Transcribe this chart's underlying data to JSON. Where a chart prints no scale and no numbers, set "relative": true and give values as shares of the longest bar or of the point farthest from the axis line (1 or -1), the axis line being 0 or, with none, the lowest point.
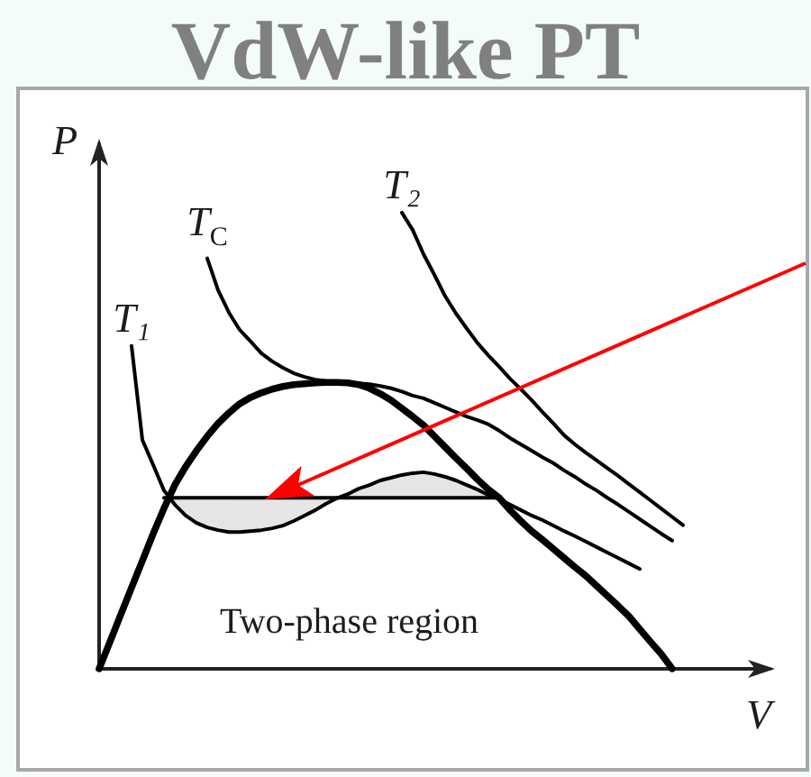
{
  "chart_data": {
    "type": "line",
    "title": "VdW-like PT",
    "xlabel": "V",
    "ylabel": "P",
    "relative": true,
    "annotations": [
      "Two-phase region"
    ],
    "categories": [
      null,
      null,
      null,
      null,
      null,
      null,
      null,
      null,
      null,
      null,
      null,
      null,
      null,
      null,
      null,
      null,
      null,
      null,
      null,
      null,
      null,
      null,
      null,
      null,
      null,
      null,
      null,
      null,
      null,
      null,
      null,
      null,
      null,
      null,
      null,
      null,
      null,
      null,
      null,
      null,
      null,
      null,
      null,
      null,
      null,
      null,
      null,
      null,
      null,
      null,
      null,
      null,
      null,
      null,
      null,
      null,
      null,
      null,
      null,
      null,
      null,
      null,
      null
    ],
    "series": [
      {
        "color": "#000000",
        "values": [
          0,
          0.059,
          0.119,
          0.178,
          0.237,
          0.296,
          0.352,
          0.403,
          0.443,
          0.478,
          0.51,
          0.538,
          0.561,
          0.581,
          0.595,
          0.605,
          0.613,
          0.619,
          0.623,
          0.625,
          0.627,
          0.628,
          0.628,
          0.627,
          0.623,
          0.615,
          0.603,
          0.589,
          0.571,
          0.553,
          0.534,
          0.51,
          0.486,
          0.462,
          0.439,
          0.415,
          0.393,
          0.375,
          0.348,
          0.324,
          0.302,
          0.283,
          0.263,
          0.243,
          0.223,
          0.204,
          0.182,
          0.16,
          0.138,
          0.115,
          0.087,
          0.059,
          0.032,
          0,
          null,
          null,
          null,
          null,
          null,
          null,
          null,
          null,
          null
        ]
      },
      {
        "name": "T₁",
        "color": "#000000",
        "values": [
          null,
          null,
          null,
          0.708,
          0.502,
          0.447,
          0.391,
          0.36,
          0.336,
          0.32,
          0.31,
          0.304,
          0.3,
          0.3,
          0.302,
          0.304,
          0.308,
          0.314,
          0.324,
          0.336,
          0.348,
          0.362,
          0.374,
          0.383,
          0.395,
          0.403,
          0.413,
          0.419,
          0.425,
          0.429,
          0.431,
          0.427,
          0.421,
          0.413,
          0.403,
          0.393,
          0.381,
          0.372,
          0.36,
          0.348,
          0.336,
          0.326,
          0.314,
          0.302,
          0.291,
          0.279,
          0.267,
          0.255,
          0.243,
          0.231,
          0.219,
          null,
          null,
          null,
          null,
          null,
          null,
          null,
          null,
          null,
          null,
          null,
          null
        ]
      },
      {
        "name": "T$_{C}$",
        "color": "#000000",
        "values": [
          null,
          null,
          null,
          null,
          null,
          null,
          null,
          null,
          null,
          null,
          0.9,
          0.83,
          0.781,
          0.743,
          0.718,
          0.692,
          0.674,
          0.66,
          0.648,
          0.64,
          0.634,
          0.631,
          0.63,
          0.628,
          0.626,
          0.624,
          0.62,
          0.615,
          0.608,
          0.599,
          0.593,
          0.583,
          0.573,
          0.563,
          0.553,
          0.545,
          0.536,
          0.522,
          0.506,
          0.492,
          0.478,
          0.464,
          0.451,
          0.435,
          0.421,
          0.405,
          0.391,
          0.375,
          0.36,
          0.344,
          0.328,
          0.312,
          0.296,
          0.281,
          null,
          null,
          null,
          null,
          null,
          null,
          null,
          null,
          null
        ]
      },
      {
        "name": "T₂",
        "color": "#000000",
        "values": [
          null,
          null,
          null,
          null,
          null,
          null,
          null,
          null,
          null,
          null,
          null,
          null,
          null,
          null,
          null,
          null,
          null,
          null,
          null,
          null,
          null,
          null,
          null,
          null,
          null,
          null,
          null,
          null,
          1,
          0.962,
          0.909,
          0.864,
          0.817,
          0.779,
          0.746,
          0.714,
          0.687,
          0.662,
          0.636,
          0.613,
          0.589,
          0.563,
          0.538,
          0.512,
          0.492,
          0.474,
          0.457,
          0.44,
          0.423,
          0.405,
          0.387,
          0.369,
          0.351,
          0.333,
          0.315,
          null,
          null,
          null,
          null,
          null,
          null,
          null,
          null
        ]
      },
      {
        "color": "#000000",
        "values": [
          null,
          null,
          null,
          null,
          null,
          null,
          0.375,
          0.375,
          0.375,
          0.375,
          0.375,
          0.375,
          0.375,
          0.375,
          0.375,
          0.375,
          0.375,
          0.375,
          0.375,
          0.375,
          0.375,
          0.375,
          0.375,
          0.375,
          0.375,
          0.375,
          0.375,
          0.375,
          0.375,
          0.375,
          0.375,
          0.375,
          0.375,
          0.375,
          0.375,
          0.375,
          0.375,
          0.375,
          null,
          null,
          null,
          null,
          null,
          null,
          null,
          null,
          null,
          null,
          null,
          null,
          null,
          null,
          null,
          null,
          null,
          null,
          null,
          null,
          null,
          null,
          null,
          null,
          null
        ],
        "lower": [
          null,
          null,
          null,
          null,
          null,
          null,
          0.375,
          0.36,
          0.336,
          0.32,
          0.31,
          0.304,
          0.3,
          0.3,
          0.302,
          0.304,
          0.308,
          0.314,
          0.324,
          0.336,
          0.348,
          0.362,
          0.374,
          0.375,
          0.375,
          0.375,
          0.375,
          0.375,
          0.375,
          0.375,
          0.375,
          0.375,
          0.375,
          0.375,
          0.375,
          0.375,
          0.375,
          0.375,
          null,
          null,
          null,
          null,
          null,
          null,
          null,
          null,
          null,
          null,
          null,
          null,
          null,
          null,
          null,
          null,
          null,
          null,
          null,
          null,
          null,
          null,
          null,
          null,
          null
        ],
        "upper": [
          null,
          null,
          null,
          null,
          null,
          null,
          0.375,
          0.375,
          0.375,
          0.375,
          0.375,
          0.375,
          0.375,
          0.375,
          0.375,
          0.375,
          0.375,
          0.375,
          0.375,
          0.375,
          0.375,
          0.375,
          0.375,
          0.383,
          0.395,
          0.403,
          0.413,
          0.419,
          0.425,
          0.429,
          0.431,
          0.427,
          0.421,
          0.413,
          0.403,
          0.393,
          0.381,
          0.375,
          null,
          null,
          null,
          null,
          null,
          null,
          null,
          null,
          null,
          null,
          null,
          null,
          null,
          null,
          null,
          null,
          null,
          null,
          null,
          null,
          null,
          null,
          null,
          null,
          null
        ]
      }
    ]
  }
}
